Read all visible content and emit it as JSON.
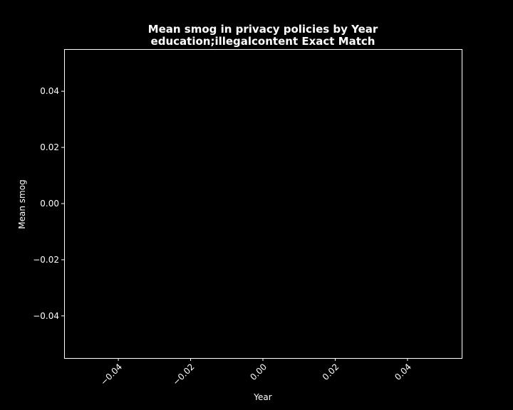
{
  "chart_data": {
    "type": "line",
    "title": "Mean smog in privacy policies by Year",
    "subtitle": "education;illegalcontent Exact Match",
    "xlabel": "Year",
    "ylabel": "Mean smog",
    "xlim": [
      -0.055,
      0.055
    ],
    "ylim": [
      -0.055,
      0.055
    ],
    "x_ticks": [
      "−0.04",
      "−0.02",
      "0.00",
      "0.02",
      "0.04"
    ],
    "y_ticks": [
      "0.04",
      "0.02",
      "0.00",
      "−0.02",
      "−0.04"
    ],
    "x_tick_values": [
      -0.04,
      -0.02,
      0.0,
      0.02,
      0.04
    ],
    "y_tick_values": [
      0.04,
      0.02,
      0.0,
      -0.02,
      -0.04
    ],
    "x_tick_rotation": 45,
    "grid": false,
    "legend": "none",
    "series": [],
    "colors": {
      "background": "#000000",
      "axes": "#ffffff",
      "text": "#ffffff"
    }
  }
}
